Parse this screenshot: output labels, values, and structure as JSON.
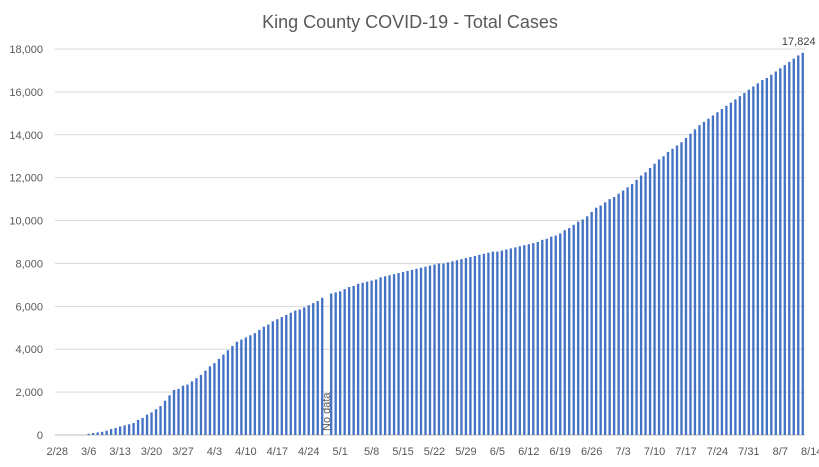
{
  "chart_data": {
    "type": "bar",
    "title": "King County COVID-19 - Total Cases",
    "xlabel": "",
    "ylabel": "",
    "ylim": [
      0,
      18000
    ],
    "yticks": [
      "0",
      "2,000",
      "4,000",
      "6,000",
      "8,000",
      "10,000",
      "12,000",
      "14,000",
      "16,000",
      "18,000"
    ],
    "grid": true,
    "legend": "none",
    "colors": {
      "bar": "#4472c4",
      "grid": "#d9d9d9",
      "text": "#595959"
    },
    "x_tick_labels": [
      "2/28",
      "3/6",
      "3/13",
      "3/20",
      "3/27",
      "4/3",
      "4/10",
      "4/17",
      "4/24",
      "5/1",
      "5/8",
      "5/15",
      "5/22",
      "5/29",
      "6/5",
      "6/12",
      "6/19",
      "6/26",
      "7/3",
      "7/10",
      "7/17",
      "7/24",
      "7/31",
      "8/7",
      "8/14"
    ],
    "x_range": [
      "2/28",
      "8/18"
    ],
    "series": [
      {
        "values": [
          0,
          0,
          0,
          0,
          0,
          0,
          0,
          50,
          90,
          120,
          150,
          200,
          280,
          330,
          400,
          450,
          500,
          560,
          700,
          800,
          950,
          1050,
          1200,
          1350,
          1600,
          1850,
          2100,
          2150,
          2300,
          2350,
          2500,
          2650,
          2800,
          3000,
          3200,
          3350,
          3550,
          3750,
          3950,
          4150,
          4350,
          4450,
          4550,
          4650,
          4750,
          4900,
          5050,
          5150,
          5300,
          5400,
          5500,
          5600,
          5700,
          5800,
          5850,
          5950,
          6050,
          6150,
          6250,
          6400,
          null,
          6600,
          6650,
          6700,
          6800,
          6900,
          6950,
          7050,
          7100,
          7150,
          7200,
          7250,
          7350,
          7400,
          7450,
          7500,
          7550,
          7600,
          7650,
          7700,
          7750,
          7800,
          7850,
          7900,
          7950,
          8000,
          8000,
          8050,
          8100,
          8150,
          8200,
          8250,
          8300,
          8350,
          8400,
          8450,
          8500,
          8550,
          8550,
          8600,
          8650,
          8700,
          8750,
          8800,
          8850,
          8900,
          8950,
          9000,
          9100,
          9150,
          9250,
          9300,
          9400,
          9550,
          9650,
          9800,
          9950,
          10050,
          10200,
          10400,
          10600,
          10700,
          10850,
          11000,
          11100,
          11250,
          11400,
          11550,
          11700,
          11900,
          12100,
          12250,
          12450,
          12650,
          12850,
          13000,
          13200,
          13350,
          13500,
          13650,
          13850,
          14050,
          14250,
          14450,
          14600,
          14750,
          14900,
          15050,
          15200,
          15350,
          15500,
          15650,
          15800,
          15950,
          16100,
          16250,
          16400,
          16550,
          16650,
          16800,
          16950,
          17100,
          17250,
          17400,
          17550,
          17700,
          17824
        ]
      }
    ],
    "annotations": {
      "no_data_label": "No data",
      "last_value_label": "17,824"
    }
  }
}
